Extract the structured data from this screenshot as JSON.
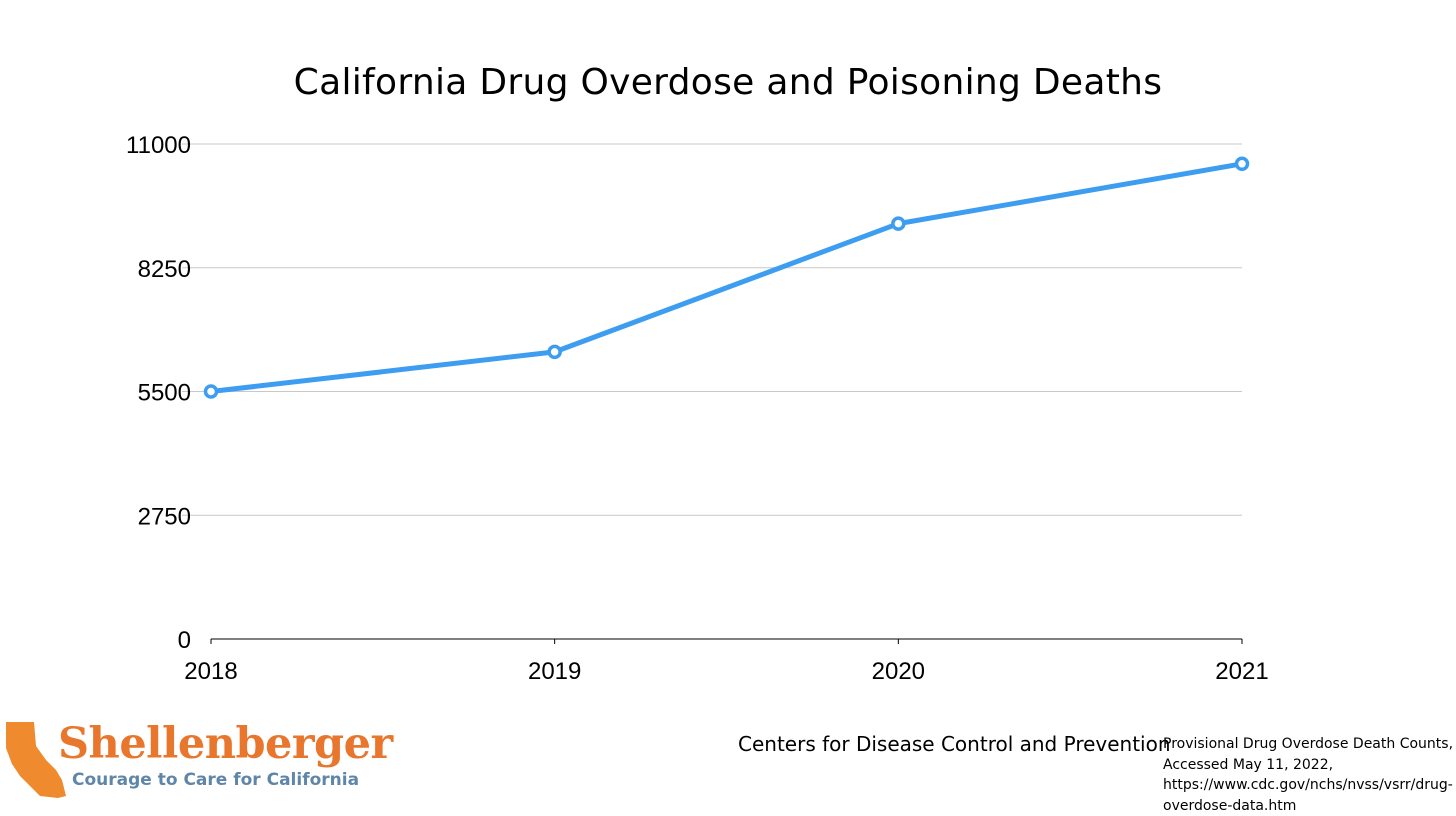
{
  "chart_data": {
    "type": "line",
    "title": "California Drug Overdose and Poisoning Deaths",
    "xlabel": "",
    "ylabel": "",
    "categories": [
      "2018",
      "2019",
      "2020",
      "2021"
    ],
    "series": [
      {
        "values": [
          5500,
          6380,
          9230,
          10560
        ],
        "color": "#3d9df0"
      }
    ],
    "ylim": [
      0,
      11000
    ],
    "yticks": [
      "0",
      "2750",
      "5500",
      "8250",
      "11000"
    ],
    "grid": true,
    "legend": "none"
  },
  "logo": {
    "name": "Shellenberger",
    "tagline": "Courage to Care for California",
    "colors": {
      "name": "#e8762c",
      "tagline": "#5f86a8",
      "state_shape": "#f08a2e"
    }
  },
  "source": {
    "organization": "Centers for Disease Control and Prevention",
    "details_lines": [
      "Provisional Drug Overdose Death Counts,",
      "Accessed May 11, 2022,",
      "https://www.cdc.gov/nchs/nvss/vsrr/drug-",
      "overdose-data.htm"
    ]
  }
}
